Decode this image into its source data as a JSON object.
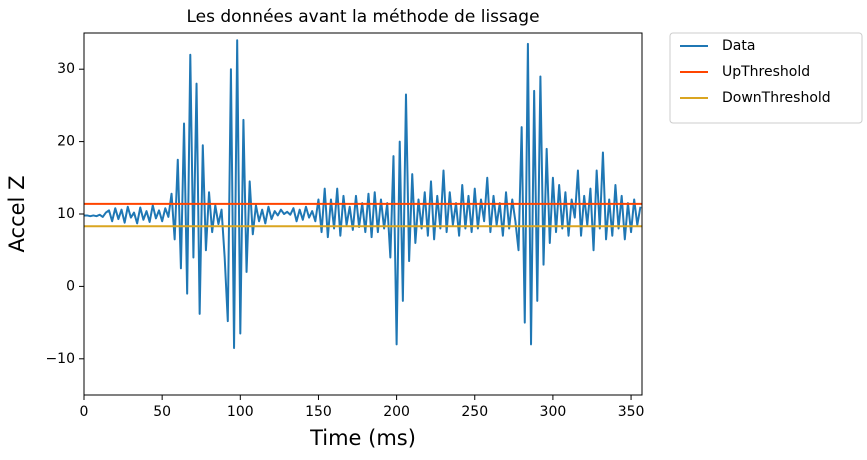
{
  "chart_data": {
    "type": "line",
    "title": "Les données avant la méthode de lissage",
    "xlabel": "Time (ms)",
    "ylabel": "Accel Z",
    "xlim": [
      0,
      357
    ],
    "ylim": [
      -15,
      35
    ],
    "xticks": [
      0,
      50,
      100,
      150,
      200,
      250,
      300,
      350
    ],
    "yticks": [
      {
        "value": -10,
        "label": "−10"
      },
      0,
      10,
      20,
      30
    ],
    "legend": "outside-upper-right",
    "grid": false,
    "series": [
      {
        "name": "Data",
        "color": "#1f77b4",
        "x": [
          0,
          2,
          4,
          6,
          8,
          10,
          12,
          14,
          16,
          18,
          20,
          22,
          24,
          26,
          28,
          30,
          32,
          34,
          36,
          38,
          40,
          42,
          44,
          46,
          48,
          50,
          52,
          54,
          56,
          58,
          60,
          62,
          64,
          66,
          68,
          70,
          72,
          74,
          76,
          78,
          80,
          82,
          84,
          86,
          88,
          90,
          92,
          94,
          96,
          98,
          100,
          102,
          104,
          106,
          108,
          110,
          112,
          114,
          116,
          118,
          120,
          122,
          124,
          126,
          128,
          130,
          132,
          134,
          136,
          138,
          140,
          142,
          144,
          146,
          148,
          150,
          152,
          154,
          156,
          158,
          160,
          162,
          164,
          166,
          168,
          170,
          172,
          174,
          176,
          178,
          180,
          182,
          184,
          186,
          188,
          190,
          192,
          194,
          196,
          198,
          200,
          202,
          204,
          206,
          208,
          210,
          212,
          214,
          216,
          218,
          220,
          222,
          224,
          226,
          228,
          230,
          232,
          234,
          236,
          238,
          240,
          242,
          244,
          246,
          248,
          250,
          252,
          254,
          256,
          258,
          260,
          262,
          264,
          266,
          268,
          270,
          272,
          274,
          276,
          278,
          280,
          282,
          284,
          286,
          288,
          290,
          292,
          294,
          296,
          298,
          300,
          302,
          304,
          306,
          308,
          310,
          312,
          314,
          316,
          318,
          320,
          322,
          324,
          326,
          328,
          330,
          332,
          334,
          336,
          338,
          340,
          342,
          344,
          346,
          348,
          350,
          352,
          354,
          356
        ],
        "values": [
          9.8,
          9.8,
          9.7,
          9.8,
          9.7,
          9.9,
          9.6,
          10.2,
          10.5,
          9.0,
          10.8,
          9.3,
          10.6,
          8.8,
          11.0,
          9.5,
          10.2,
          8.7,
          10.9,
          9.2,
          10.4,
          8.9,
          11.2,
          9.4,
          10.5,
          9.0,
          10.8,
          9.6,
          12.8,
          6.5,
          17.5,
          2.5,
          22.5,
          -1.0,
          32.0,
          4.0,
          28.0,
          -3.8,
          19.5,
          5.0,
          13.0,
          7.5,
          11.2,
          8.6,
          10.6,
          4.0,
          -4.8,
          30.0,
          -8.5,
          34.0,
          -6.5,
          23.0,
          2.0,
          14.5,
          7.2,
          11.2,
          9.0,
          10.6,
          8.7,
          11.0,
          9.3,
          10.4,
          9.8,
          10.6,
          10.0,
          10.3,
          9.9,
          10.8,
          9.0,
          10.6,
          9.2,
          11.0,
          9.5,
          10.4,
          9.0,
          12.0,
          7.5,
          13.5,
          6.8,
          12.0,
          8.0,
          13.5,
          7.0,
          12.5,
          8.5,
          11.0,
          7.8,
          12.5,
          8.2,
          11.5,
          7.5,
          12.8,
          6.8,
          13.0,
          7.5,
          12.0,
          8.0,
          11.5,
          4.0,
          18.0,
          -8.0,
          20.0,
          -2.0,
          26.5,
          3.5,
          15.5,
          6.0,
          12.0,
          8.0,
          13.0,
          7.0,
          14.5,
          6.5,
          12.5,
          8.0,
          16.0,
          7.5,
          13.0,
          8.5,
          11.5,
          7.0,
          14.0,
          8.0,
          12.5,
          7.5,
          13.5,
          8.0,
          12.0,
          9.0,
          15.0,
          7.5,
          12.5,
          8.5,
          11.5,
          7.0,
          13.0,
          8.0,
          12.0,
          9.0,
          5.0,
          22.0,
          -5.0,
          33.5,
          -8.0,
          27.0,
          -2.0,
          29.0,
          3.0,
          19.0,
          6.0,
          15.0,
          7.5,
          14.0,
          8.0,
          13.0,
          7.0,
          12.0,
          9.5,
          16.0,
          7.0,
          12.5,
          8.5,
          13.5,
          5.0,
          16.0,
          8.0,
          18.5,
          6.5,
          12.0,
          7.0,
          14.0,
          8.0,
          12.5,
          6.5,
          11.5,
          7.5,
          12.0,
          8.5,
          11.0
        ]
      },
      {
        "name": "UpThreshold",
        "color": "#ff4500",
        "x": [
          0,
          357
        ],
        "values": [
          11.4,
          11.4
        ]
      },
      {
        "name": "DownThreshold",
        "color": "#daa520",
        "x": [
          0,
          357
        ],
        "values": [
          8.3,
          8.3
        ]
      }
    ]
  }
}
